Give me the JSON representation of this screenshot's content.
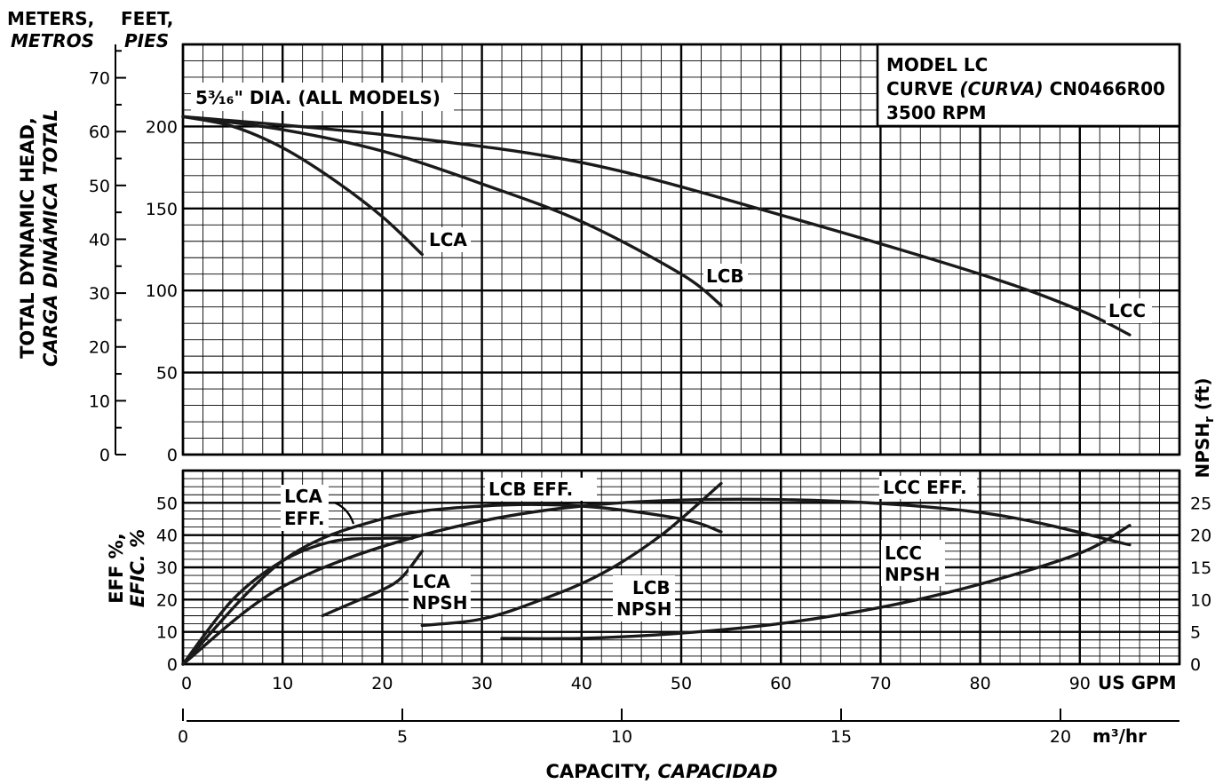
{
  "chart_data": [
    {
      "type": "line",
      "name_id": "head-capacity",
      "left_axis_title": "METERS,",
      "left_axis_title_alt": "METROS",
      "inner_axis_title": "FEET,",
      "inner_axis_title_alt": "PIES",
      "ylabel": "TOTAL DYNAMIC HEAD,",
      "ylabel_alt": "CARGA DINÁMICA TOTAL",
      "diameter_note": "5³⁄₁₆\" DIA. (ALL MODELS)",
      "model_box": {
        "line1": "MODEL LC",
        "line2_a": "CURVE ",
        "line2_b": "(CURVA)",
        "line2_c": " CN0466R00",
        "line3": "3500 RPM"
      },
      "xlim": [
        0,
        100
      ],
      "ylim_feet": [
        0,
        250
      ],
      "feet_ticks": [
        "0",
        "50",
        "100",
        "150",
        "200"
      ],
      "meter_ticks": [
        "0",
        "10",
        "20",
        "30",
        "40",
        "50",
        "60",
        "70"
      ],
      "series": [
        {
          "name": "LCA",
          "x": [
            0,
            5,
            10,
            15,
            20,
            24
          ],
          "y": [
            206,
            200,
            187,
            168,
            145,
            122
          ]
        },
        {
          "name": "LCB",
          "x": [
            0,
            10,
            20,
            30,
            40,
            50,
            54
          ],
          "y": [
            206,
            198,
            185,
            165,
            142,
            110,
            91
          ]
        },
        {
          "name": "LCC",
          "x": [
            0,
            20,
            40,
            60,
            80,
            90,
            95
          ],
          "y": [
            206,
            195,
            178,
            146,
            110,
            88,
            73
          ]
        }
      ]
    },
    {
      "type": "line",
      "name_id": "efficiency-npsh",
      "ylabel": "EFF %,",
      "ylabel_alt": "EFIC. %",
      "y2label": "NPSHr (ft)",
      "y2label_main": "NPSH",
      "y2label_sub": "r",
      "y2label_unit": " (ft)",
      "xlabel": "US GPM",
      "xlabel2": "m³/hr",
      "title_bottom_a": "CAPACITY, ",
      "title_bottom_b": "CAPACIDAD",
      "xlim": [
        0,
        100
      ],
      "ylim": [
        0,
        60
      ],
      "y2lim": [
        0,
        30
      ],
      "x_ticks": [
        "0",
        "10",
        "20",
        "30",
        "40",
        "50",
        "60",
        "70",
        "80",
        "90"
      ],
      "m3hr_ticks": [
        "0",
        "5",
        "10",
        "15",
        "20"
      ],
      "eff_ticks": [
        "0",
        "10",
        "20",
        "30",
        "40",
        "50"
      ],
      "npsh_ticks": [
        "0",
        "5",
        "10",
        "15",
        "20",
        "25"
      ],
      "series": [
        {
          "name": "LCA EFF.",
          "label_line1": "LCA",
          "label_line2": "EFF.",
          "x": [
            0,
            5,
            10,
            15,
            20,
            23
          ],
          "y": [
            0,
            20,
            32,
            38,
            39,
            39
          ]
        },
        {
          "name": "LCB EFF.",
          "x": [
            0,
            10,
            20,
            30,
            40,
            50,
            54
          ],
          "y": [
            0,
            32,
            45,
            49,
            49,
            45,
            41
          ]
        },
        {
          "name": "LCC EFF.",
          "x": [
            0,
            10,
            24,
            40,
            60,
            80,
            95
          ],
          "y": [
            0,
            24,
            40,
            49,
            51,
            47,
            37
          ]
        },
        {
          "name": "LCA NPSH",
          "label_line1": "LCA",
          "label_line2": "NPSH",
          "x": [
            14,
            17,
            20,
            22,
            24
          ],
          "y2": [
            7.5,
            9.5,
            11.5,
            13.5,
            17.5
          ]
        },
        {
          "name": "LCB NPSH",
          "label_line1": "LCB",
          "label_line2": "NPSH",
          "x": [
            24,
            30,
            36,
            42,
            48,
            54
          ],
          "y2": [
            6,
            7,
            10,
            14,
            20,
            28
          ]
        },
        {
          "name": "LCC NPSH",
          "label_line1": "LCC",
          "label_line2": "NPSH",
          "x": [
            32,
            40,
            50,
            60,
            70,
            80,
            90,
            95
          ],
          "y2": [
            4,
            4,
            4.8,
            6.3,
            8.8,
            12.4,
            17.2,
            21.5
          ]
        }
      ]
    }
  ]
}
